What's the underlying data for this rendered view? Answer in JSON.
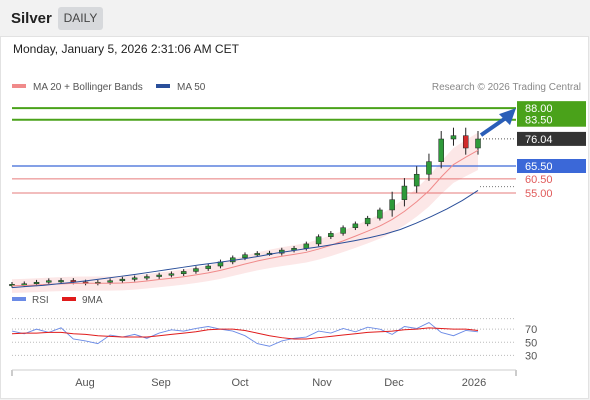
{
  "header": {
    "title": "Silver",
    "badge": "DAILY"
  },
  "datetime": "Monday, January 5, 2026 2:31:06 AM CET",
  "chart_data": [
    {
      "type": "line",
      "title": "Silver",
      "legend": [
        {
          "name": "MA 20 + Bollinger Bands",
          "color": "#f08a8a"
        },
        {
          "name": "MA 50",
          "color": "#2a4f9a"
        }
      ],
      "credit": "Research © 2026 Trading Central",
      "x_labels": [
        "Aug",
        "Sep",
        "Oct",
        "Nov",
        "Dec",
        "2026"
      ],
      "levels": [
        {
          "label": "88.00",
          "value": 88.0,
          "kind": "target",
          "color": "#4aa21a"
        },
        {
          "label": "83.50",
          "value": 83.5,
          "kind": "target",
          "color": "#4aa21a"
        },
        {
          "label": "76.04",
          "value": 76.04,
          "kind": "last",
          "color": "#333333"
        },
        {
          "label": "65.50",
          "value": 65.5,
          "kind": "pivot",
          "color": "#3b68d8"
        },
        {
          "label": "60.50",
          "value": 60.5,
          "kind": "support",
          "color": "#e05a5a"
        },
        {
          "label": "55.00",
          "value": 55.0,
          "kind": "support",
          "color": "#e05a5a"
        }
      ],
      "ylim": [
        20,
        90
      ],
      "series": [
        {
          "name": "MA 50",
          "values": [
            18.2,
            18.7,
            19.1,
            19.7,
            20.3,
            21.0,
            21.8,
            22.6,
            23.4,
            24.3,
            25.2,
            26.1,
            27.0,
            27.8,
            28.6,
            29.5,
            30.5,
            31.6,
            32.5,
            33.4,
            34.3,
            35.3,
            36.4,
            37.6,
            39.0,
            40.8,
            43.2,
            45.9,
            48.8,
            52.1,
            56.0
          ]
        }
      ],
      "ohlc_closes": [
        19.5,
        19.7,
        20.3,
        20.9,
        21.0,
        20.4,
        20.0,
        20.3,
        20.9,
        21.5,
        22.0,
        22.5,
        23.1,
        23.6,
        24.5,
        25.6,
        26.6,
        28.2,
        29.8,
        31.0,
        31.5,
        31.6,
        32.8,
        33.5,
        35.2,
        38.0,
        39.3,
        41.5,
        43.0,
        45.2,
        48.4,
        52.4,
        57.7,
        62.3,
        67.2,
        76.0,
        77.3,
        72.5,
        76.0
      ]
    },
    {
      "type": "line",
      "legend": [
        {
          "name": "RSI",
          "color": "#6b8be6"
        },
        {
          "name": "9MA",
          "color": "#e01b1b"
        }
      ],
      "y_ticks": [
        "70",
        "50",
        "30"
      ],
      "ylim": [
        20,
        90
      ],
      "series": [
        {
          "name": "RSI",
          "values": [
            67,
            63,
            70,
            65,
            72,
            55,
            52,
            48,
            61,
            58,
            62,
            56,
            64,
            69,
            67,
            71,
            74,
            70,
            67,
            60,
            48,
            44,
            52,
            56,
            58,
            67,
            64,
            71,
            66,
            73,
            70,
            62,
            74,
            71,
            80,
            65,
            60,
            68,
            66
          ]
        },
        {
          "name": "9MA",
          "values": [
            63,
            64,
            64,
            65,
            65,
            63,
            62,
            60,
            59,
            58,
            58,
            58,
            60,
            62,
            64,
            66,
            69,
            70,
            70,
            68,
            64,
            60,
            57,
            55,
            55,
            57,
            59,
            61,
            63,
            65,
            66,
            67,
            69,
            70,
            72,
            71,
            70,
            70,
            68
          ]
        }
      ]
    }
  ]
}
